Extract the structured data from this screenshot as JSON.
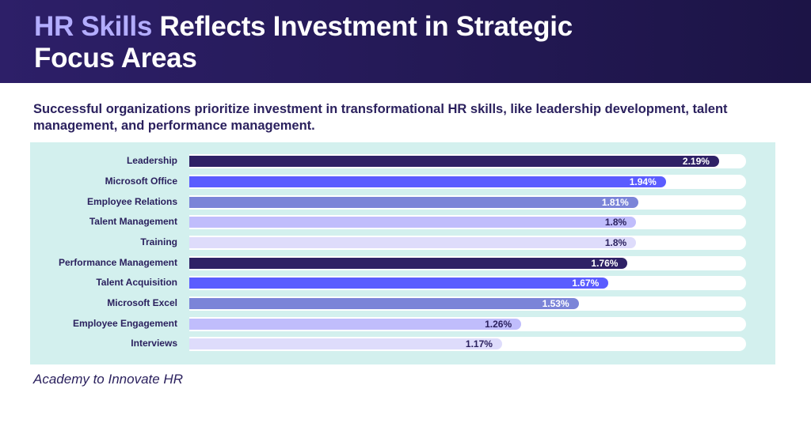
{
  "header": {
    "title_highlight": "HR Skills",
    "title_rest": " Reflects Investment in Strategic Focus Areas"
  },
  "subtitle": "Successful organizations prioritize investment in transformational HR skills, like leadership development, talent management, and performance management.",
  "source": "Academy to Innovate HR",
  "colors": {
    "header_bg": "#241a55",
    "highlight": "#b3adff",
    "panel_bg": "#d3f0ee",
    "palette": [
      "#2f2166",
      "#5b5cff",
      "#7b84d8",
      "#c0bdfc",
      "#dedcfb"
    ]
  },
  "chart_data": {
    "type": "bar",
    "orientation": "horizontal",
    "categories": [
      "Leadership",
      "Microsoft Office",
      "Employee Relations",
      "Talent Management",
      "Training",
      "Performance Management",
      "Talent Acquisition",
      "Microsoft Excel",
      "Employee Engagement",
      "Interviews"
    ],
    "values": [
      2.19,
      1.94,
      1.81,
      1.8,
      1.8,
      1.76,
      1.67,
      1.53,
      1.26,
      1.17
    ],
    "labels": [
      "2.19%",
      "1.94%",
      "1.81%",
      "1.8%",
      "1.8%",
      "1.76%",
      "1.67%",
      "1.53%",
      "1.26%",
      "1.17%"
    ],
    "unit": "%",
    "grid": false
  }
}
